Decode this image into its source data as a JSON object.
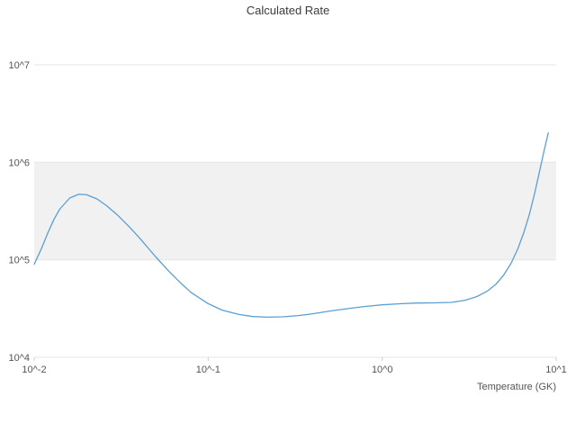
{
  "chart_data": {
    "type": "line",
    "title": "Calculated Rate",
    "xlabel": "Temperature (GK)",
    "ylabel": "",
    "x_scale": "log",
    "y_scale": "log",
    "xlim": [
      0.01,
      10
    ],
    "ylim": [
      10000,
      10000000
    ],
    "x_tick_values": [
      0.01,
      0.1,
      1,
      10
    ],
    "x_tick_labels": [
      "10^-2",
      "10^-1",
      "10^0",
      "10^1"
    ],
    "y_tick_values": [
      10000,
      100000,
      1000000,
      10000000
    ],
    "y_tick_labels": [
      "10^4",
      "10^5",
      "10^6",
      "10^7"
    ],
    "grid": "horizontal",
    "grid_color": "#e6e6e6",
    "tick_color": "#cccccc",
    "line_color": "#5a9fd4",
    "shaded_band": {
      "y_from": 100000,
      "y_to": 1000000,
      "color": "#f1f1f1"
    },
    "legend": "none",
    "series": [
      {
        "name": "calculated-rate",
        "x": [
          0.01,
          0.011,
          0.012,
          0.013,
          0.014,
          0.016,
          0.018,
          0.02,
          0.023,
          0.026,
          0.03,
          0.035,
          0.04,
          0.05,
          0.06,
          0.07,
          0.08,
          0.1,
          0.12,
          0.15,
          0.18,
          0.22,
          0.27,
          0.33,
          0.4,
          0.5,
          0.65,
          0.8,
          1.0,
          1.3,
          1.6,
          2.0,
          2.5,
          3.0,
          3.5,
          4.0,
          4.5,
          5.0,
          5.5,
          6.0,
          6.5,
          7.0,
          7.5,
          8.0,
          8.5,
          9.0
        ],
        "y": [
          90000,
          130000,
          190000,
          260000,
          330000,
          430000,
          470000,
          465000,
          420000,
          360000,
          290000,
          220000,
          170000,
          107000,
          75000,
          57000,
          46000,
          35500,
          30500,
          27500,
          26200,
          25800,
          26000,
          26800,
          28000,
          29800,
          31800,
          33200,
          34500,
          35500,
          36000,
          36200,
          36600,
          38500,
          42000,
          47500,
          56000,
          70000,
          92000,
          128000,
          188000,
          290000,
          470000,
          790000,
          1300000,
          2000000
        ]
      }
    ]
  }
}
